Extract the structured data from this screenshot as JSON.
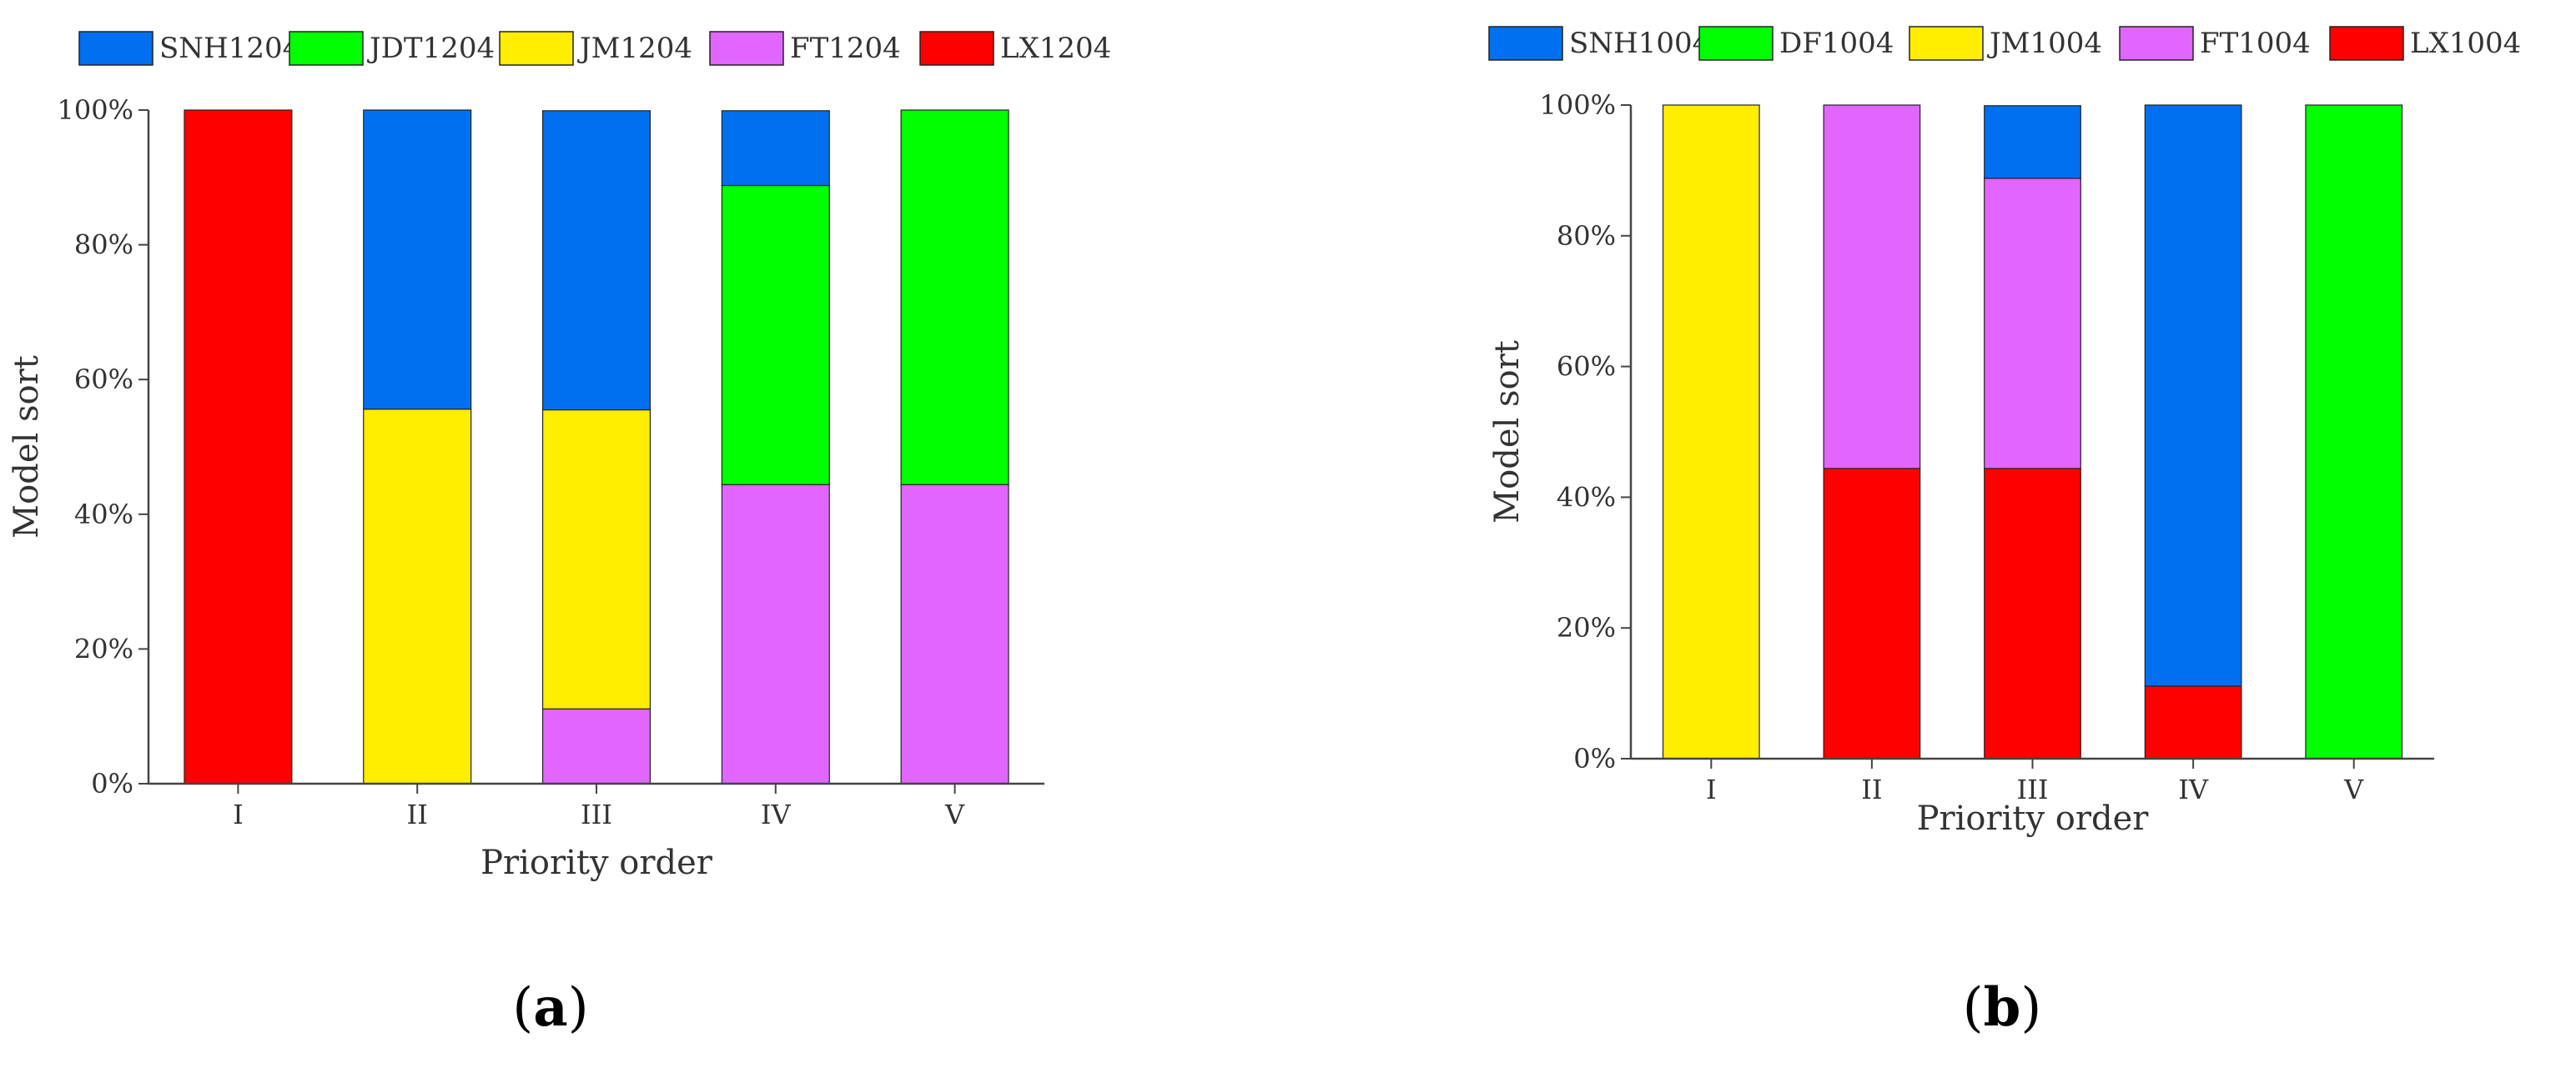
{
  "colors": {
    "SNH": "#0070f0",
    "green": "#00ff00",
    "JM": "#ffee00",
    "FT": "#e066ff",
    "LX": "#ff0000"
  },
  "chart_data": [
    {
      "type": "bar",
      "stacked": true,
      "panel_label": "a",
      "xlabel": "Priority order",
      "ylabel": "Model sort",
      "ylim": [
        0,
        100
      ],
      "y_ticks": [
        "0%",
        "20%",
        "40%",
        "60%",
        "80%",
        "100%"
      ],
      "categories": [
        "I",
        "II",
        "III",
        "IV",
        "V"
      ],
      "legend_position": "top",
      "series": [
        {
          "name": "SNH1204",
          "color_key": "SNH",
          "values": [
            0,
            44.4,
            44.4,
            11.1,
            0
          ]
        },
        {
          "name": "JDT1204",
          "color_key": "green",
          "values": [
            0,
            0,
            0,
            44.4,
            55.6
          ]
        },
        {
          "name": "JM1204",
          "color_key": "JM",
          "values": [
            0,
            55.6,
            44.4,
            0,
            0
          ]
        },
        {
          "name": "FT1204",
          "color_key": "FT",
          "values": [
            0,
            0,
            11.1,
            44.4,
            44.4
          ]
        },
        {
          "name": "LX1204",
          "color_key": "LX",
          "values": [
            100,
            0,
            0,
            0,
            0
          ]
        }
      ],
      "stack_order": [
        "LX1204",
        "FT1204",
        "JM1204",
        "JDT1204",
        "SNH1204"
      ]
    },
    {
      "type": "bar",
      "stacked": true,
      "panel_label": "b",
      "xlabel": "Priority order",
      "ylabel": "Model sort",
      "ylim": [
        0,
        100
      ],
      "y_ticks": [
        "0%",
        "20%",
        "40%",
        "60%",
        "80%",
        "100%"
      ],
      "categories": [
        "I",
        "II",
        "III",
        "IV",
        "V"
      ],
      "legend_position": "top",
      "series": [
        {
          "name": "SNH1004",
          "color_key": "SNH",
          "values": [
            0,
            0,
            11.1,
            88.9,
            0
          ]
        },
        {
          "name": "DF1004",
          "color_key": "green",
          "values": [
            0,
            0,
            0,
            0,
            100
          ]
        },
        {
          "name": "JM1004",
          "color_key": "JM",
          "values": [
            100,
            0,
            0,
            0,
            0
          ]
        },
        {
          "name": "FT1004",
          "color_key": "FT",
          "values": [
            0,
            55.6,
            44.4,
            0,
            0
          ]
        },
        {
          "name": "LX1004",
          "color_key": "LX",
          "values": [
            0,
            44.4,
            44.4,
            11.1,
            0
          ]
        }
      ],
      "stack_order": [
        "LX1004",
        "FT1004",
        "JM1004",
        "DF1004",
        "SNH1004"
      ]
    }
  ]
}
